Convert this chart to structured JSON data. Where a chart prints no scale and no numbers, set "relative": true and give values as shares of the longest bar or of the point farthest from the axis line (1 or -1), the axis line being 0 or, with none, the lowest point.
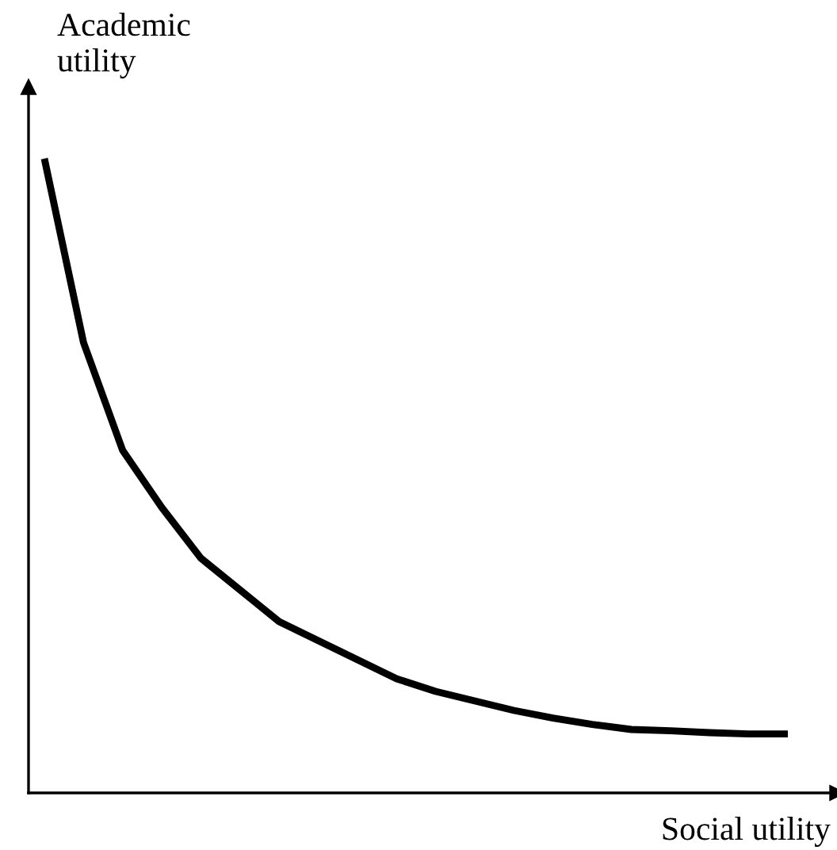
{
  "chart_data": {
    "type": "line",
    "relative": true,
    "xlabel": "Social utility",
    "ylabel": "Academic\nutility",
    "categories": [
      null,
      null,
      null,
      null,
      null,
      null,
      null,
      null,
      null,
      null,
      null,
      null,
      null,
      null,
      null,
      null,
      null,
      null,
      null,
      null
    ],
    "series": [
      {
        "color": "#000000",
        "values": [
          1.0,
          0.71,
          0.54,
          0.45,
          0.37,
          0.32,
          0.27,
          0.24,
          0.21,
          0.18,
          0.16,
          0.145,
          0.13,
          0.118,
          0.108,
          0.1,
          0.098,
          0.095,
          0.093,
          0.093
        ]
      }
    ],
    "grid": false,
    "legend": false,
    "marker": "none",
    "line_style": "solid"
  }
}
